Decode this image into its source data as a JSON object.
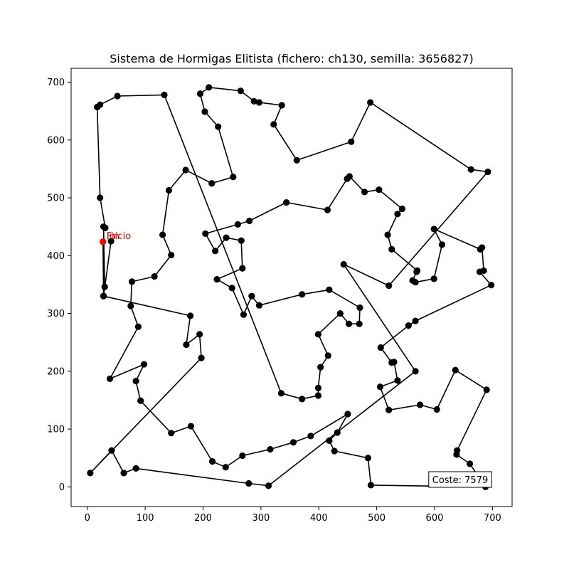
{
  "chart_data": {
    "type": "line",
    "title": "Sistema de Hormigas Elitista (fichero: ch130, semilla: 3656827)",
    "xlabel": "",
    "ylabel": "",
    "xlim": [
      -28,
      734
    ],
    "ylim": [
      -34,
      724
    ],
    "xticks": [
      0,
      100,
      200,
      300,
      400,
      500,
      600,
      700
    ],
    "yticks": [
      0,
      100,
      200,
      300,
      400,
      500,
      600,
      700
    ],
    "grid": false,
    "colors": {
      "route": "#000000",
      "marker": "#000000",
      "start": "#ff0000"
    },
    "start_label": "Inicio",
    "end_label": "Fin",
    "cost_label": "Coste: 7579",
    "start_point": [
      27,
      424
    ],
    "route": [
      [
        27,
        424
      ],
      [
        28,
        330
      ],
      [
        30,
        346
      ],
      [
        28,
        450
      ],
      [
        31,
        448
      ],
      [
        22,
        500
      ],
      [
        17,
        657
      ],
      [
        22,
        661
      ],
      [
        52,
        676
      ],
      [
        133,
        678
      ],
      [
        335,
        162
      ],
      [
        371,
        152
      ],
      [
        399,
        158
      ],
      [
        399,
        171
      ],
      [
        403,
        207
      ],
      [
        416,
        227
      ],
      [
        399,
        264
      ],
      [
        437,
        300
      ],
      [
        452,
        282
      ],
      [
        470,
        282
      ],
      [
        471,
        310
      ],
      [
        418,
        341
      ],
      [
        371,
        333
      ],
      [
        297,
        314
      ],
      [
        284,
        330
      ],
      [
        270,
        298
      ],
      [
        250,
        344
      ],
      [
        224,
        359
      ],
      [
        268,
        378
      ],
      [
        266,
        426
      ],
      [
        240,
        431
      ],
      [
        221,
        408
      ],
      [
        204,
        438
      ],
      [
        260,
        454
      ],
      [
        280,
        460
      ],
      [
        344,
        492
      ],
      [
        415,
        479
      ],
      [
        449,
        533
      ],
      [
        453,
        537
      ],
      [
        479,
        510
      ],
      [
        504,
        514
      ],
      [
        544,
        481
      ],
      [
        536,
        472
      ],
      [
        519,
        436
      ],
      [
        526,
        411
      ],
      [
        570,
        374
      ],
      [
        569,
        372
      ],
      [
        562,
        357
      ],
      [
        567,
        354
      ],
      [
        599,
        360
      ],
      [
        613,
        419
      ],
      [
        599,
        446
      ],
      [
        679,
        411
      ],
      [
        682,
        414
      ],
      [
        685,
        374
      ],
      [
        678,
        372
      ],
      [
        698,
        349
      ],
      [
        567,
        287
      ],
      [
        555,
        279
      ],
      [
        507,
        241
      ],
      [
        526,
        215
      ],
      [
        530,
        216
      ],
      [
        536,
        184
      ],
      [
        506,
        173
      ],
      [
        521,
        133
      ],
      [
        575,
        142
      ],
      [
        604,
        134
      ],
      [
        636,
        202
      ],
      [
        690,
        168
      ],
      [
        639,
        63
      ],
      [
        638,
        56
      ],
      [
        661,
        40
      ],
      [
        688,
        0
      ],
      [
        490,
        3
      ],
      [
        485,
        50
      ],
      [
        427,
        62
      ],
      [
        418,
        80
      ],
      [
        432,
        94
      ],
      [
        450,
        126
      ],
      [
        386,
        88
      ],
      [
        356,
        77
      ],
      [
        316,
        65
      ],
      [
        268,
        54
      ],
      [
        239,
        34
      ],
      [
        216,
        44
      ],
      [
        179,
        105
      ],
      [
        145,
        93
      ],
      [
        92,
        149
      ],
      [
        84,
        183
      ],
      [
        98,
        212
      ],
      [
        39,
        187
      ],
      [
        88,
        277
      ],
      [
        75,
        313
      ],
      [
        77,
        355
      ],
      [
        116,
        364
      ],
      [
        145,
        401
      ],
      [
        130,
        436
      ],
      [
        141,
        513
      ],
      [
        170,
        548
      ],
      [
        215,
        525
      ],
      [
        252,
        536
      ],
      [
        226,
        623
      ],
      [
        203,
        649
      ],
      [
        195,
        680
      ],
      [
        210,
        691
      ],
      [
        265,
        685
      ],
      [
        288,
        667
      ],
      [
        297,
        665
      ],
      [
        336,
        660
      ],
      [
        322,
        627
      ],
      [
        362,
        565
      ],
      [
        456,
        597
      ],
      [
        489,
        665
      ],
      [
        663,
        549
      ],
      [
        692,
        545
      ],
      [
        521,
        348
      ],
      [
        443,
        385
      ],
      [
        567,
        200
      ],
      [
        313,
        2
      ],
      [
        279,
        6
      ],
      [
        84,
        32
      ],
      [
        63,
        24
      ],
      [
        42,
        63
      ],
      [
        5,
        24
      ],
      [
        197,
        223
      ],
      [
        194,
        264
      ],
      [
        171,
        246
      ],
      [
        178,
        296
      ],
      [
        28,
        330
      ],
      [
        41,
        425
      ]
    ]
  }
}
